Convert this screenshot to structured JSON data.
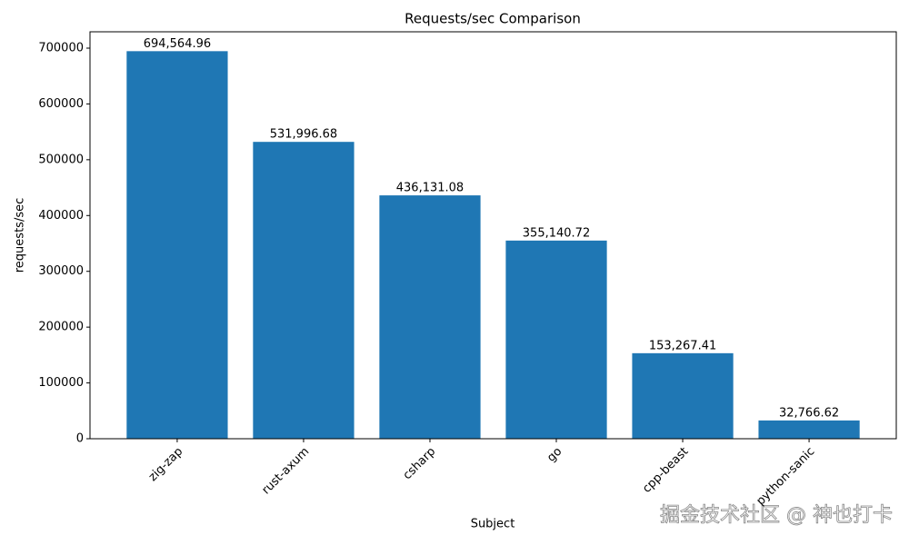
{
  "chart_data": {
    "type": "bar",
    "title": "Requests/sec Comparison",
    "x_label": "Subject",
    "y_label": "requests/sec",
    "categories": [
      "zig-zap",
      "rust-axum",
      "csharp",
      "go",
      "cpp-beast",
      "python-sanic"
    ],
    "values": [
      694564.96,
      531996.68,
      436131.08,
      355140.72,
      153267.41,
      32766.62
    ],
    "value_labels": [
      "694,564.96",
      "531,996.68",
      "436,131.08",
      "355,140.72",
      "153,267.41",
      "32,766.62"
    ],
    "color": "#1f77b4",
    "ylim": [
      0,
      729293.2
    ],
    "yticks": [
      0,
      100000,
      200000,
      300000,
      400000,
      500000,
      600000,
      700000
    ],
    "grid": false
  },
  "watermark": "掘金技术社区 @ 神也打卡"
}
